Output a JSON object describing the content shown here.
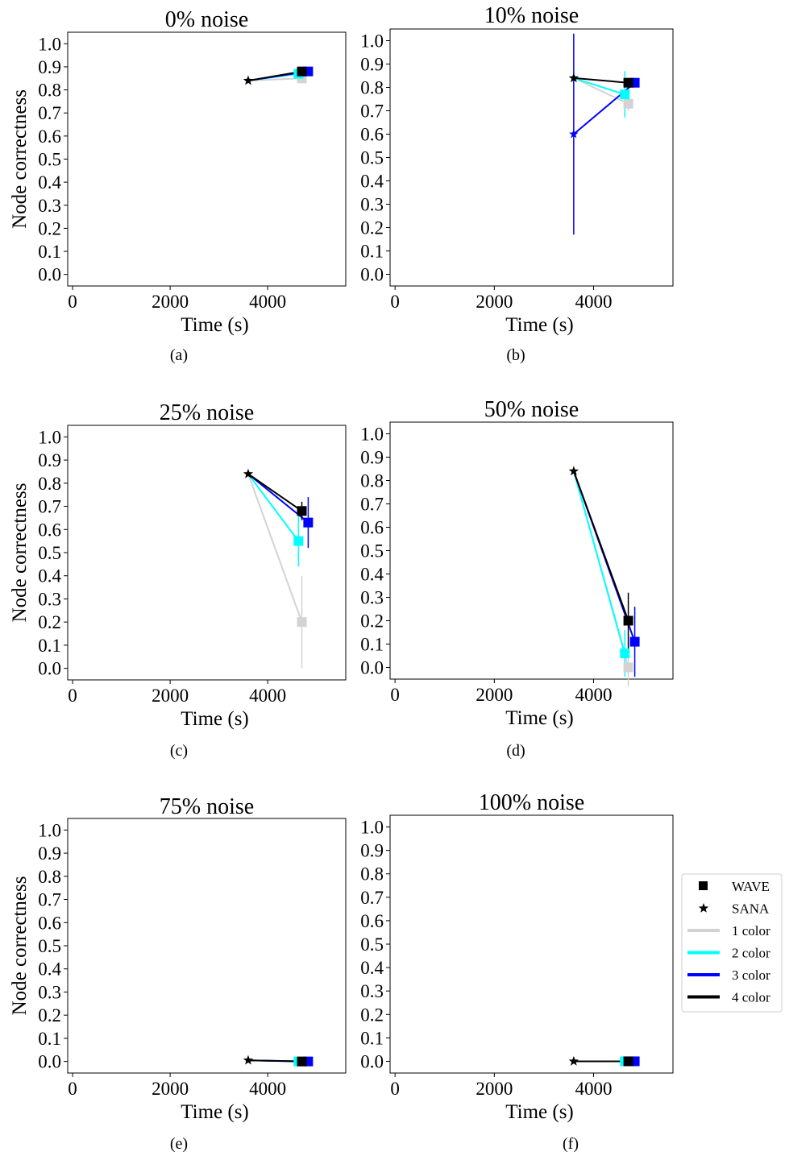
{
  "figure": {
    "ylabel": "Node correctness",
    "xlabel": "Time (s)",
    "legend": {
      "placement": "right, beside panel (f)",
      "entries": [
        {
          "label": "WAVE",
          "kind": "square-marker",
          "color": "#000000"
        },
        {
          "label": "SANA",
          "kind": "star-marker",
          "color": "#000000"
        },
        {
          "label": "1 color",
          "kind": "line",
          "color": "#d3d3d3"
        },
        {
          "label": "2 color",
          "kind": "line",
          "color": "#00ffff"
        },
        {
          "label": "3 color",
          "kind": "line",
          "color": "#0000ff"
        },
        {
          "label": "4 color",
          "kind": "line",
          "color": "#000000"
        }
      ]
    }
  },
  "chart_data": [
    {
      "type": "scatter",
      "caption": "(a)",
      "title": "0% noise",
      "xlabel": "Time (s)",
      "ylabel": "Node correctness",
      "xlim": [
        -100,
        5600
      ],
      "ylim": [
        -0.05,
        1.05
      ],
      "xticks": [
        "0",
        "2000",
        "4000"
      ],
      "yticks": [
        "0.0",
        "0.1",
        "0.2",
        "0.3",
        "0.4",
        "0.5",
        "0.6",
        "0.7",
        "0.8",
        "0.9",
        "1.0"
      ],
      "sana": {
        "x": 3600,
        "y": 0.84
      },
      "series": [
        {
          "name": "1 color",
          "color": "#d3d3d3",
          "wave": {
            "x": 4700,
            "y": 0.85,
            "err": 0
          }
        },
        {
          "name": "2 color",
          "color": "#00ffff",
          "wave": {
            "x": 4630,
            "y": 0.87,
            "err": 0
          }
        },
        {
          "name": "3 color",
          "color": "#0000ff",
          "wave": {
            "x": 4830,
            "y": 0.88,
            "err": 0
          }
        },
        {
          "name": "4 color",
          "color": "#000000",
          "wave": {
            "x": 4700,
            "y": 0.88,
            "err": 0
          }
        }
      ],
      "sana_err": 0
    },
    {
      "type": "scatter",
      "caption": "(b)",
      "title": "10% noise",
      "xlabel": "Time (s)",
      "ylabel": "",
      "xlim": [
        -100,
        5600
      ],
      "ylim": [
        -0.05,
        1.05
      ],
      "xticks": [
        "0",
        "2000",
        "4000"
      ],
      "yticks": [
        "0.0",
        "0.1",
        "0.2",
        "0.3",
        "0.4",
        "0.5",
        "0.6",
        "0.7",
        "0.8",
        "0.9",
        "1.0"
      ],
      "sana": {
        "x": 3600,
        "y": 0.84
      },
      "series": [
        {
          "name": "1 color",
          "color": "#d3d3d3",
          "wave": {
            "x": 4700,
            "y": 0.73,
            "err": 0.03
          }
        },
        {
          "name": "2 color",
          "color": "#00ffff",
          "wave": {
            "x": 4630,
            "y": 0.77,
            "err": 0.1
          }
        },
        {
          "name": "3 color",
          "color": "#0000ff",
          "wave": {
            "x": 4830,
            "y": 0.82,
            "err": 0.02
          },
          "sana_override": {
            "x": 3600,
            "y": 0.6,
            "err": 0.43
          }
        },
        {
          "name": "4 color",
          "color": "#000000",
          "wave": {
            "x": 4700,
            "y": 0.82,
            "err": 0.02
          }
        }
      ],
      "sana_err": 0
    },
    {
      "type": "scatter",
      "caption": "(c)",
      "title": "25% noise",
      "xlabel": "Time (s)",
      "ylabel": "Node correctness",
      "xlim": [
        -100,
        5600
      ],
      "ylim": [
        -0.05,
        1.05
      ],
      "xticks": [
        "0",
        "2000",
        "4000"
      ],
      "yticks": [
        "0.0",
        "0.1",
        "0.2",
        "0.3",
        "0.4",
        "0.5",
        "0.6",
        "0.7",
        "0.8",
        "0.9",
        "1.0"
      ],
      "sana": {
        "x": 3600,
        "y": 0.84
      },
      "series": [
        {
          "name": "1 color",
          "color": "#d3d3d3",
          "wave": {
            "x": 4700,
            "y": 0.2,
            "err": 0.2
          }
        },
        {
          "name": "2 color",
          "color": "#00ffff",
          "wave": {
            "x": 4630,
            "y": 0.55,
            "err": 0.11
          }
        },
        {
          "name": "3 color",
          "color": "#0000ff",
          "wave": {
            "x": 4830,
            "y": 0.63,
            "err": 0.11
          }
        },
        {
          "name": "4 color",
          "color": "#000000",
          "wave": {
            "x": 4700,
            "y": 0.68,
            "err": 0.04
          }
        }
      ],
      "sana_err": 0
    },
    {
      "type": "scatter",
      "caption": "(d)",
      "title": "50% noise",
      "xlabel": "Time (s)",
      "ylabel": "",
      "xlim": [
        -100,
        5600
      ],
      "ylim": [
        -0.05,
        1.05
      ],
      "xticks": [
        "0",
        "2000",
        "4000"
      ],
      "yticks": [
        "0.0",
        "0.1",
        "0.2",
        "0.3",
        "0.4",
        "0.5",
        "0.6",
        "0.7",
        "0.8",
        "0.9",
        "1.0"
      ],
      "sana": {
        "x": 3600,
        "y": 0.84
      },
      "series": [
        {
          "name": "1 color",
          "color": "#d3d3d3",
          "wave": {
            "x": 4700,
            "y": 0.0,
            "err": 0.08
          }
        },
        {
          "name": "2 color",
          "color": "#00ffff",
          "wave": {
            "x": 4630,
            "y": 0.06,
            "err": 0.1
          }
        },
        {
          "name": "3 color",
          "color": "#0000ff",
          "wave": {
            "x": 4830,
            "y": 0.11,
            "err": 0.15
          }
        },
        {
          "name": "4 color",
          "color": "#000000",
          "wave": {
            "x": 4700,
            "y": 0.2,
            "err": 0.12
          }
        }
      ],
      "sana_err": 0
    },
    {
      "type": "scatter",
      "caption": "(e)",
      "title": "75% noise",
      "xlabel": "Time (s)",
      "ylabel": "Node correctness",
      "xlim": [
        -100,
        5600
      ],
      "ylim": [
        -0.05,
        1.05
      ],
      "xticks": [
        "0",
        "2000",
        "4000"
      ],
      "yticks": [
        "0.0",
        "0.1",
        "0.2",
        "0.3",
        "0.4",
        "0.5",
        "0.6",
        "0.7",
        "0.8",
        "0.9",
        "1.0"
      ],
      "sana": {
        "x": 3600,
        "y": 0.005
      },
      "series": [
        {
          "name": "1 color",
          "color": "#d3d3d3",
          "wave": {
            "x": 4700,
            "y": 0.0,
            "err": 0
          }
        },
        {
          "name": "2 color",
          "color": "#00ffff",
          "wave": {
            "x": 4630,
            "y": 0.0,
            "err": 0
          }
        },
        {
          "name": "3 color",
          "color": "#0000ff",
          "wave": {
            "x": 4830,
            "y": 0.0,
            "err": 0
          }
        },
        {
          "name": "4 color",
          "color": "#000000",
          "wave": {
            "x": 4700,
            "y": 0.0,
            "err": 0
          }
        }
      ],
      "sana_err": 0
    },
    {
      "type": "scatter",
      "caption": "(f)",
      "title": "100% noise",
      "xlabel": "Time (s)",
      "ylabel": "",
      "xlim": [
        -100,
        5600
      ],
      "ylim": [
        -0.05,
        1.05
      ],
      "xticks": [
        "0",
        "2000",
        "4000"
      ],
      "yticks": [
        "0.0",
        "0.1",
        "0.2",
        "0.3",
        "0.4",
        "0.5",
        "0.6",
        "0.7",
        "0.8",
        "0.9",
        "1.0"
      ],
      "sana": {
        "x": 3600,
        "y": 0.0
      },
      "series": [
        {
          "name": "1 color",
          "color": "#d3d3d3",
          "wave": {
            "x": 4700,
            "y": 0.0,
            "err": 0
          }
        },
        {
          "name": "2 color",
          "color": "#00ffff",
          "wave": {
            "x": 4630,
            "y": 0.0,
            "err": 0
          }
        },
        {
          "name": "3 color",
          "color": "#0000ff",
          "wave": {
            "x": 4830,
            "y": 0.0,
            "err": 0
          }
        },
        {
          "name": "4 color",
          "color": "#000000",
          "wave": {
            "x": 4700,
            "y": 0.0,
            "err": 0
          }
        }
      ],
      "sana_err": 0
    }
  ]
}
